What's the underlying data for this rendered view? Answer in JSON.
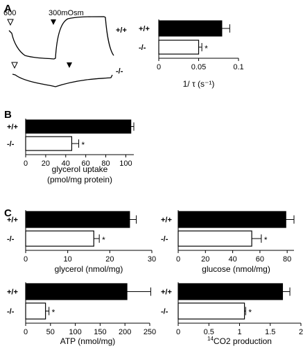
{
  "panel_labels": [
    "A",
    "B",
    "C"
  ],
  "trace": {
    "label_600": "600",
    "label_300": "300mOsm",
    "geno_wt": "+/+",
    "geno_ko": "-/-"
  },
  "sup_14": "14",
  "chart_data": [
    {
      "id": "A",
      "type": "bar",
      "orientation": "horizontal",
      "categories": [
        "+/+",
        "-/-"
      ],
      "values": [
        0.079,
        0.05
      ],
      "errors": [
        0.01,
        0.004
      ],
      "significance": [
        "",
        "*"
      ],
      "xlabel": "1/ τ  (s⁻¹)",
      "xlim": [
        0,
        0.1
      ],
      "ticks": [
        0,
        0.05,
        0.1
      ],
      "tick_labels": [
        "0",
        "0.05",
        "0.1"
      ],
      "fills": [
        "#000000",
        "#ffffff"
      ]
    },
    {
      "id": "B",
      "type": "bar",
      "orientation": "horizontal",
      "categories": [
        "+/+",
        "-/-"
      ],
      "values": [
        105,
        46
      ],
      "errors": [
        3,
        7
      ],
      "significance": [
        "",
        "*"
      ],
      "xlabel": "glycerol uptake",
      "xlabel2": "(pmol/mg protein)",
      "xlim": [
        0,
        108
      ],
      "ticks": [
        0,
        20,
        40,
        60,
        80,
        100
      ],
      "tick_labels": [
        "0",
        "20",
        "40",
        "60",
        "80",
        "100"
      ],
      "fills": [
        "#000000",
        "#ffffff"
      ]
    },
    {
      "id": "C1",
      "type": "bar",
      "orientation": "horizontal",
      "categories": [
        "+/+",
        "-/-"
      ],
      "values": [
        24.7,
        16.2
      ],
      "errors": [
        1.6,
        1.3
      ],
      "significance": [
        "",
        "*"
      ],
      "xlabel": "glycerol (nmol/mg)",
      "xlim": [
        0,
        30
      ],
      "ticks": [
        0,
        10,
        20,
        30
      ],
      "tick_labels": [
        "0",
        "10",
        "20",
        "30"
      ],
      "fills": [
        "#000000",
        "#ffffff"
      ]
    },
    {
      "id": "C2",
      "type": "bar",
      "orientation": "horizontal",
      "categories": [
        "+/+",
        "-/-"
      ],
      "values": [
        79,
        54
      ],
      "errors": [
        6,
        7
      ],
      "significance": [
        "",
        "*"
      ],
      "xlabel": "glucose (nmol/mg)",
      "xlim": [
        0,
        85
      ],
      "ticks": [
        0,
        20,
        40,
        60,
        80
      ],
      "tick_labels": [
        "0",
        "20",
        "40",
        "60",
        "80"
      ],
      "fills": [
        "#000000",
        "#ffffff"
      ]
    },
    {
      "id": "C3",
      "type": "bar",
      "orientation": "horizontal",
      "categories": [
        "+/+",
        "-/-"
      ],
      "values": [
        204,
        40
      ],
      "errors": [
        48,
        7
      ],
      "significance": [
        "",
        "*"
      ],
      "xlabel": "ATP (nmol/mg)",
      "xlim": [
        0,
        250
      ],
      "ticks": [
        0,
        50,
        100,
        150,
        200,
        250
      ],
      "tick_labels": [
        "0",
        "50",
        "100",
        "150",
        "200",
        "250"
      ],
      "fills": [
        "#000000",
        "#ffffff"
      ]
    },
    {
      "id": "C4",
      "type": "bar",
      "orientation": "horizontal",
      "categories": [
        "+/+",
        "-/-"
      ],
      "values": [
        1.7,
        1.08
      ],
      "errors": [
        0.12,
        0.02
      ],
      "significance": [
        "",
        "*"
      ],
      "xlabel": "CO2 production",
      "xlim": [
        0,
        2
      ],
      "ticks": [
        0,
        0.5,
        1,
        1.5,
        2
      ],
      "tick_labels": [
        "0",
        "0.5",
        "1",
        "1.5",
        "2"
      ],
      "fills": [
        "#000000",
        "#ffffff"
      ]
    }
  ]
}
